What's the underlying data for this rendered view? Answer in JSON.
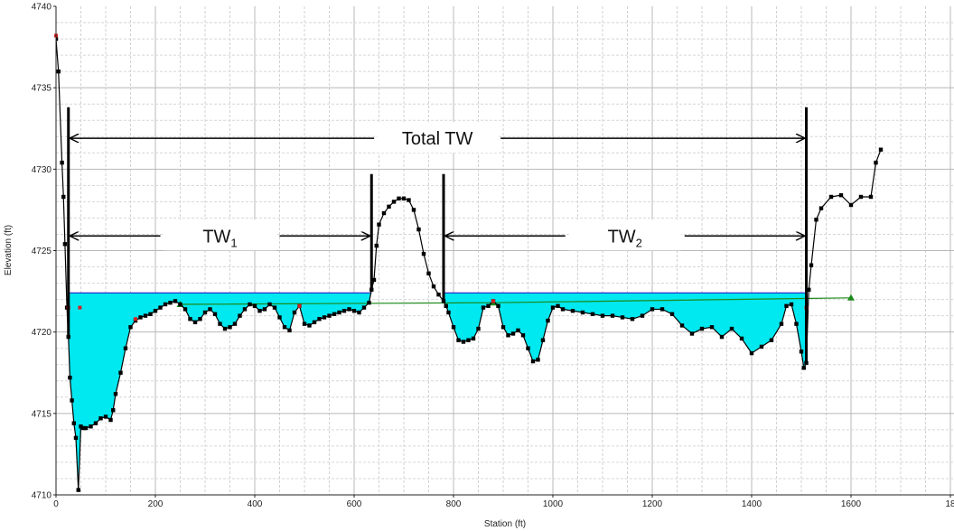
{
  "chart_data": {
    "type": "line",
    "xlabel": "Station (ft)",
    "ylabel": "Elevation (ft)",
    "xlim": [
      0,
      1800
    ],
    "ylim": [
      4710,
      4740
    ],
    "x_ticks": [
      "0",
      "200",
      "400",
      "600",
      "800",
      "1000",
      "1200",
      "1400",
      "1600",
      "18"
    ],
    "y_ticks": [
      "4710",
      "4715",
      "4720",
      "4725",
      "4730",
      "4735",
      "4740"
    ],
    "grid": true,
    "colors": {
      "ground": "#000000",
      "water_fill": "#00e8f0",
      "water_line": "#2233cc",
      "egl": "#1b8a1b",
      "bank": "#d42020"
    },
    "water_surface_elevation": 4722.4,
    "water_extents": [
      [
        25,
        635
      ],
      [
        780,
        1510
      ]
    ],
    "ground_profile": {
      "x": [
        0,
        5,
        12,
        15,
        18,
        22,
        25,
        28,
        32,
        36,
        40,
        45,
        50,
        55,
        60,
        70,
        80,
        90,
        100,
        110,
        115,
        120,
        130,
        140,
        150,
        160,
        170,
        180,
        190,
        200,
        210,
        220,
        230,
        240,
        250,
        260,
        270,
        280,
        290,
        300,
        310,
        320,
        330,
        340,
        350,
        360,
        370,
        380,
        390,
        400,
        410,
        420,
        430,
        440,
        450,
        460,
        470,
        480,
        490,
        500,
        510,
        520,
        530,
        540,
        550,
        560,
        570,
        580,
        590,
        600,
        610,
        620,
        630,
        635,
        640,
        645,
        650,
        660,
        670,
        680,
        690,
        700,
        710,
        720,
        730,
        740,
        750,
        760,
        770,
        780,
        785,
        790,
        800,
        810,
        820,
        830,
        840,
        850,
        860,
        870,
        880,
        890,
        900,
        910,
        920,
        930,
        940,
        950,
        960,
        970,
        980,
        990,
        1000,
        1010,
        1020,
        1040,
        1060,
        1080,
        1100,
        1120,
        1140,
        1160,
        1180,
        1200,
        1220,
        1240,
        1260,
        1280,
        1300,
        1320,
        1340,
        1360,
        1380,
        1400,
        1420,
        1440,
        1460,
        1470,
        1480,
        1490,
        1500,
        1505,
        1510,
        1515,
        1520,
        1530,
        1540,
        1560,
        1580,
        1600,
        1620,
        1640,
        1650,
        1660
      ],
      "y": [
        4738,
        4736,
        4730.4,
        4728.3,
        4725.4,
        4721.5,
        4719.7,
        4717.2,
        4715.8,
        4714.4,
        4713.5,
        4710.3,
        4714.2,
        4714.1,
        4714.1,
        4714.2,
        4714.4,
        4714.7,
        4714.8,
        4714.6,
        4715.2,
        4716.2,
        4717.5,
        4719,
        4720.3,
        4720.7,
        4720.9,
        4721,
        4721.1,
        4721.3,
        4721.5,
        4721.7,
        4721.8,
        4721.9,
        4721.7,
        4721.4,
        4720.8,
        4720.6,
        4720.8,
        4721.2,
        4721.4,
        4721.1,
        4720.5,
        4720.2,
        4720.3,
        4720.5,
        4721,
        4721.4,
        4721.7,
        4721.6,
        4721.3,
        4721.4,
        4721.7,
        4721.5,
        4720.9,
        4720.3,
        4720.1,
        4721.2,
        4721.6,
        4720.5,
        4720.4,
        4720.6,
        4720.8,
        4720.9,
        4721.0,
        4721.1,
        4721.2,
        4721.3,
        4721.4,
        4721.3,
        4721.2,
        4721.5,
        4721.8,
        4722.6,
        4723.2,
        4725.3,
        4726.6,
        4727.3,
        4727.7,
        4728,
        4728.2,
        4728.2,
        4728.1,
        4727.5,
        4726.3,
        4724.8,
        4723.6,
        4722.8,
        4722.3,
        4721.9,
        4721.6,
        4721.2,
        4720.3,
        4719.5,
        4719.4,
        4719.5,
        4719.6,
        4720.2,
        4721.5,
        4721.6,
        4721.9,
        4721.6,
        4720.3,
        4719.8,
        4719.9,
        4720.1,
        4719.8,
        4719,
        4718.2,
        4718.3,
        4719.5,
        4720.7,
        4721.5,
        4721.6,
        4721.4,
        4721.3,
        4721.2,
        4721.1,
        4721.0,
        4721.0,
        4720.9,
        4720.8,
        4721.0,
        4721.4,
        4721.4,
        4721.1,
        4720.4,
        4719.9,
        4720.2,
        4720.3,
        4719.7,
        4720.2,
        4719.6,
        4718.7,
        4719.1,
        4719.5,
        4720.5,
        4721.6,
        4721.7,
        4720.5,
        4718.8,
        4717.8,
        4718.1,
        4722.6,
        4724.1,
        4726.9,
        4727.6,
        4728.3,
        4728.4,
        4727.8,
        4728.3,
        4728.3,
        4730.4,
        4731.2
      ]
    },
    "energy_grade_line": {
      "x": [
        250,
        880,
        1600
      ],
      "y": [
        4721.7,
        4721.8,
        4722.1
      ]
    },
    "bank_points": {
      "x": [
        0,
        25,
        48,
        160,
        490,
        880,
        1510
      ],
      "y": [
        4738.2,
        4721.5,
        4721.5,
        4720.8,
        4721.6,
        4721.9,
        4721.5
      ]
    },
    "boundary_lines": [
      {
        "x": 25,
        "y_top": 4733.8
      },
      {
        "x": 635,
        "y_top": 4729.7
      },
      {
        "x": 780,
        "y_top": 4729.7
      },
      {
        "x": 1510,
        "y_top": 4733.8
      }
    ],
    "annotations": [
      {
        "text": "Total  TW",
        "subscript": "",
        "x_from": 25,
        "x_to": 1510,
        "y": 4731.9
      },
      {
        "text": "TW",
        "subscript": "1",
        "x_from": 25,
        "x_to": 635,
        "y": 4725.9
      },
      {
        "text": "TW",
        "subscript": "2",
        "x_from": 780,
        "x_to": 1510,
        "y": 4725.9
      }
    ]
  }
}
